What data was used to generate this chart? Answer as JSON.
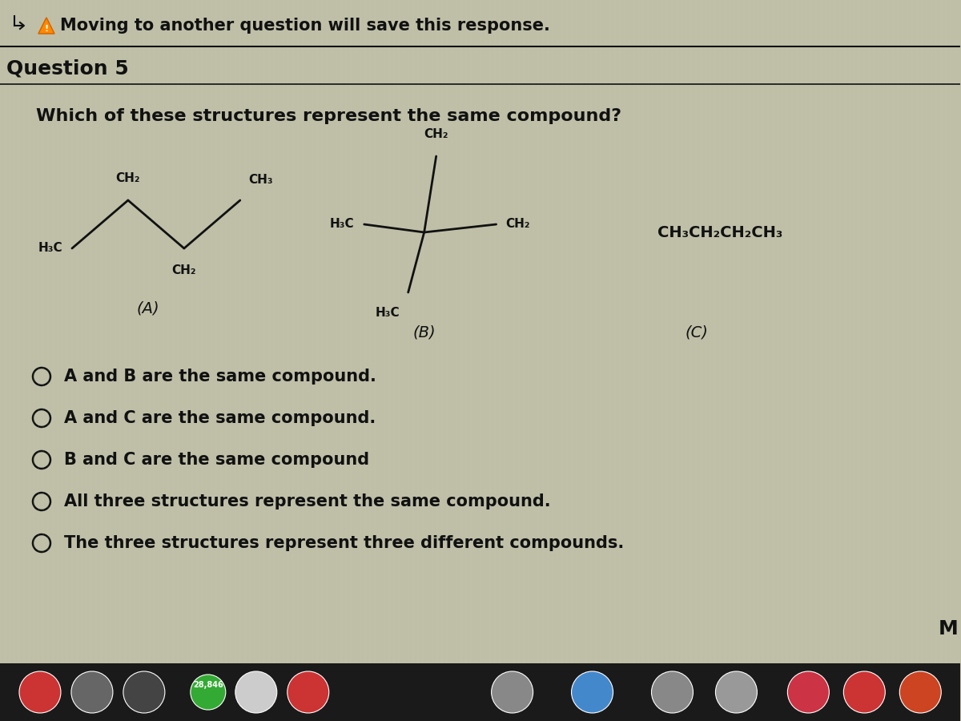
{
  "bg_color": "#bfbfa8",
  "text_color": "#111111",
  "line_color": "#222222",
  "header_msg": "Moving to another question will save this response.",
  "question_label": "Question 5",
  "question_text": "Which of these structures represent the same compound?",
  "struct_A_label": "(A)",
  "struct_B_label": "(B)",
  "struct_C_label": "(C)",
  "struct_C_formula": "CH₃CH₂CH₂CH₃",
  "choices": [
    "A and B are the same compound.",
    "A and C are the same compound.",
    "B and C are the same compound",
    "All three structures represent the same compound.",
    "The three structures represent three different compounds."
  ],
  "taskbar_color": "#1a1a1a",
  "warning_color": "#dd8800"
}
